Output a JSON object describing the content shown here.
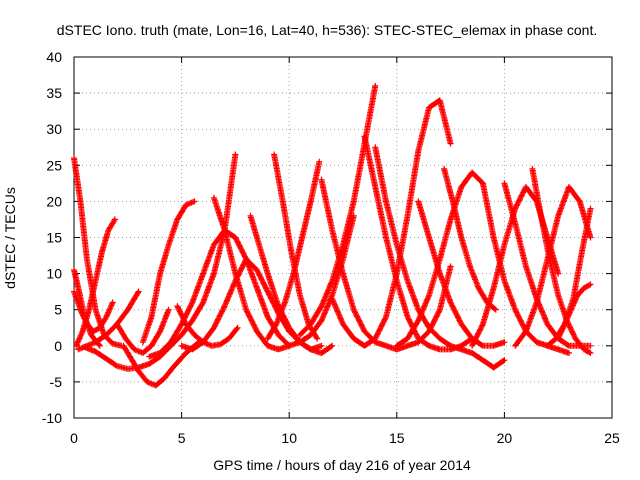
{
  "chart_data": {
    "type": "scatter",
    "title": "dSTEC Iono. truth (mate, Lon=16, Lat=40, h=536): STEC-STEC_elemax in phase cont.",
    "xlabel": "GPS time / hours of day 216 of year 2014",
    "ylabel": "dSTEC  / TECUs",
    "xlim": [
      0,
      25
    ],
    "ylim": [
      -10,
      40
    ],
    "xticks": [
      "0",
      "5",
      "10",
      "15",
      "20",
      "25"
    ],
    "yticks": [
      "-10",
      "-5",
      "0",
      "5",
      "10",
      "15",
      "20",
      "25",
      "30",
      "35",
      "40"
    ],
    "grid": true,
    "marker": "+",
    "color": "#ff0000",
    "series": [
      {
        "x": [
          0.0,
          0.3,
          0.6,
          1.0,
          1.4,
          1.8,
          2.2
        ],
        "y": [
          26.0,
          20.0,
          12.0,
          5.0,
          1.5,
          0.3,
          0.0
        ]
      },
      {
        "x": [
          0.0,
          0.2,
          0.5,
          0.8,
          1.2
        ],
        "y": [
          10.5,
          8.0,
          4.0,
          1.5,
          0.0
        ]
      },
      {
        "x": [
          0.0,
          0.3,
          0.6,
          0.9,
          1.2,
          1.5,
          1.8
        ],
        "y": [
          7.5,
          5.0,
          3.0,
          2.0,
          2.5,
          4.0,
          6.0
        ]
      },
      {
        "x": [
          0.1,
          0.4,
          0.7,
          1.0,
          1.3,
          1.6,
          1.9
        ],
        "y": [
          0.0,
          2.0,
          5.0,
          9.0,
          13.0,
          16.0,
          17.5
        ]
      },
      {
        "x": [
          0.2,
          0.6,
          1.0,
          1.5,
          2.0,
          2.5,
          3.0
        ],
        "y": [
          -0.5,
          0.0,
          0.5,
          1.5,
          3.0,
          5.0,
          7.5
        ]
      },
      {
        "x": [
          0.5,
          1.0,
          1.5,
          2.0,
          2.5,
          3.0,
          3.5,
          4.0,
          4.5,
          5.0,
          5.5,
          6.0,
          6.5,
          7.0,
          7.5
        ],
        "y": [
          -0.2,
          -0.8,
          -1.8,
          -2.8,
          -3.2,
          -3.0,
          -2.5,
          -1.5,
          0.0,
          1.5,
          3.5,
          6.0,
          10.0,
          16.0,
          26.5
        ]
      },
      {
        "x": [
          2.0,
          2.4,
          2.8,
          3.2,
          3.6,
          4.0,
          4.4
        ],
        "y": [
          3.0,
          1.0,
          -0.5,
          -1.0,
          0.0,
          2.0,
          5.0
        ]
      },
      {
        "x": [
          2.3,
          2.6,
          3.0,
          3.4,
          3.8,
          4.2,
          4.6,
          5.2,
          5.8
        ],
        "y": [
          0.0,
          -1.5,
          -3.5,
          -5.0,
          -5.5,
          -4.5,
          -3.0,
          -1.0,
          0.5
        ]
      },
      {
        "x": [
          3.2,
          3.6,
          4.0,
          4.4,
          4.8,
          5.2,
          5.6
        ],
        "y": [
          0.5,
          4.0,
          10.0,
          14.0,
          17.5,
          19.5,
          20.0
        ]
      },
      {
        "x": [
          3.5,
          4.0,
          4.5,
          5.0,
          5.5,
          6.0,
          6.5,
          7.0,
          7.5,
          8.0,
          8.5,
          9.0,
          9.5,
          10.0
        ],
        "y": [
          -1.5,
          -1.0,
          0.5,
          3.0,
          6.0,
          10.0,
          14.0,
          16.0,
          15.0,
          12.0,
          8.0,
          4.0,
          1.5,
          0.0
        ]
      },
      {
        "x": [
          4.8,
          5.2,
          5.6,
          6.0,
          6.4,
          6.8,
          7.2,
          7.6
        ],
        "y": [
          5.5,
          3.0,
          1.5,
          0.5,
          0.0,
          0.2,
          1.0,
          2.5
        ]
      },
      {
        "x": [
          5.0,
          5.5,
          6.0,
          6.5,
          7.0,
          7.5,
          8.0,
          8.5,
          9.0,
          9.5,
          10.0,
          10.5,
          11.0,
          11.5
        ],
        "y": [
          0.0,
          -0.5,
          0.5,
          2.5,
          5.5,
          9.0,
          12.0,
          10.5,
          7.5,
          4.5,
          2.0,
          0.5,
          -0.5,
          0.0
        ]
      },
      {
        "x": [
          6.5,
          7.0,
          7.5,
          8.0,
          8.5,
          9.0,
          9.5,
          10.0,
          10.5,
          11.0,
          11.5,
          12.0,
          12.5,
          13.0
        ],
        "y": [
          20.5,
          16.0,
          10.0,
          5.0,
          2.0,
          0.0,
          -0.5,
          0.0,
          0.5,
          1.5,
          3.5,
          7.0,
          12.0,
          18.0
        ]
      },
      {
        "x": [
          8.2,
          8.6,
          9.0,
          9.5,
          10.0,
          10.5,
          11.0,
          11.5,
          12.0
        ],
        "y": [
          18.0,
          14.0,
          10.0,
          5.5,
          2.5,
          0.5,
          -0.5,
          -1.0,
          0.0
        ]
      },
      {
        "x": [
          9.3,
          9.7,
          10.1,
          10.5,
          10.9,
          11.3
        ],
        "y": [
          26.5,
          20.0,
          13.0,
          7.0,
          3.0,
          1.0
        ]
      },
      {
        "x": [
          9.0,
          9.4,
          9.8,
          10.2,
          10.6,
          11.0,
          11.4
        ],
        "y": [
          1.0,
          3.0,
          6.0,
          10.0,
          15.0,
          20.0,
          25.5
        ]
      },
      {
        "x": [
          10.5,
          11.0,
          11.5,
          12.0,
          12.5,
          13.0,
          13.5,
          14.0
        ],
        "y": [
          1.5,
          3.0,
          5.5,
          9.0,
          14.0,
          20.0,
          28.0,
          36.0
        ]
      },
      {
        "x": [
          11.5,
          12.0,
          12.5,
          13.0,
          13.5,
          14.0,
          14.5,
          15.0,
          15.5,
          16.0,
          16.5,
          17.0,
          17.5
        ],
        "y": [
          23.0,
          16.0,
          10.0,
          5.0,
          2.0,
          0.5,
          0.0,
          -0.5,
          0.0,
          0.5,
          2.0,
          5.0,
          11.0
        ]
      },
      {
        "x": [
          12.0,
          12.5,
          13.0,
          13.5,
          14.0,
          14.5,
          15.0,
          15.5,
          16.0,
          16.5,
          17.0,
          17.5
        ],
        "y": [
          6.5,
          3.0,
          1.0,
          0.0,
          1.0,
          4.0,
          10.0,
          18.0,
          27.0,
          33.0,
          34.0,
          28.0
        ]
      },
      {
        "x": [
          13.5,
          14.0,
          14.5,
          15.0,
          15.5,
          16.0,
          16.5,
          17.0,
          17.5,
          18.0,
          18.5
        ],
        "y": [
          29.0,
          22.0,
          15.0,
          9.0,
          4.0,
          1.0,
          0.0,
          -0.5,
          -0.5,
          0.0,
          1.0
        ]
      },
      {
        "x": [
          14.0,
          14.5,
          15.0,
          15.5,
          16.0,
          16.5,
          17.0,
          17.5,
          18.0,
          18.5,
          19.0,
          19.5,
          20.0
        ],
        "y": [
          27.5,
          20.0,
          14.0,
          9.0,
          5.0,
          2.5,
          1.0,
          0.0,
          -0.5,
          -1.0,
          -2.0,
          -3.0,
          -2.0
        ]
      },
      {
        "x": [
          15.0,
          15.5,
          16.0,
          16.5,
          17.0,
          17.5,
          18.0,
          18.5,
          19.0
        ],
        "y": [
          0.0,
          1.0,
          3.5,
          7.0,
          12.0,
          17.5,
          22.0,
          24.0,
          22.5
        ]
      },
      {
        "x": [
          16.0,
          16.5,
          17.0,
          17.5,
          18.0,
          18.5,
          19.0,
          19.5,
          20.0
        ],
        "y": [
          20.0,
          15.0,
          10.0,
          6.0,
          3.0,
          1.0,
          0.0,
          0.0,
          0.5
        ]
      },
      {
        "x": [
          17.2,
          17.6,
          18.0,
          18.4,
          18.8,
          19.2,
          19.6
        ],
        "y": [
          24.5,
          20.0,
          15.0,
          11.0,
          8.0,
          6.0,
          5.0
        ]
      },
      {
        "x": [
          18.5,
          19.0,
          19.5,
          20.0,
          20.5,
          21.0,
          21.5,
          22.0,
          22.5
        ],
        "y": [
          0.0,
          3.0,
          8.0,
          14.0,
          19.0,
          22.0,
          20.0,
          15.0,
          10.0
        ]
      },
      {
        "x": [
          19.0,
          19.5,
          20.0,
          20.5,
          21.0,
          21.5,
          22.0,
          22.5,
          23.0
        ],
        "y": [
          22.5,
          15.0,
          9.0,
          5.0,
          2.0,
          0.5,
          0.0,
          -0.5,
          -1.0
        ]
      },
      {
        "x": [
          20.0,
          20.5,
          21.0,
          21.5,
          22.0,
          22.5,
          23.0,
          23.5,
          24.0
        ],
        "y": [
          22.5,
          17.0,
          11.0,
          6.5,
          3.0,
          1.0,
          0.0,
          0.0,
          0.0
        ]
      },
      {
        "x": [
          20.5,
          21.0,
          21.5,
          22.0,
          22.5,
          23.0,
          23.5,
          24.0
        ],
        "y": [
          0.0,
          2.0,
          6.0,
          12.0,
          18.0,
          22.0,
          20.0,
          15.0
        ]
      },
      {
        "x": [
          21.3,
          21.7,
          22.1,
          22.5,
          22.9,
          23.3,
          23.7,
          24.0
        ],
        "y": [
          24.5,
          18.0,
          12.0,
          7.0,
          3.5,
          1.0,
          -0.5,
          -1.0
        ]
      },
      {
        "x": [
          22.0,
          22.4,
          22.8,
          23.2,
          23.6,
          24.0
        ],
        "y": [
          0.0,
          1.0,
          3.0,
          6.5,
          13.0,
          19.0
        ]
      },
      {
        "x": [
          22.5,
          22.8,
          23.1,
          23.4,
          23.7,
          24.0
        ],
        "y": [
          1.0,
          3.0,
          5.0,
          7.0,
          8.0,
          8.5
        ]
      }
    ]
  }
}
